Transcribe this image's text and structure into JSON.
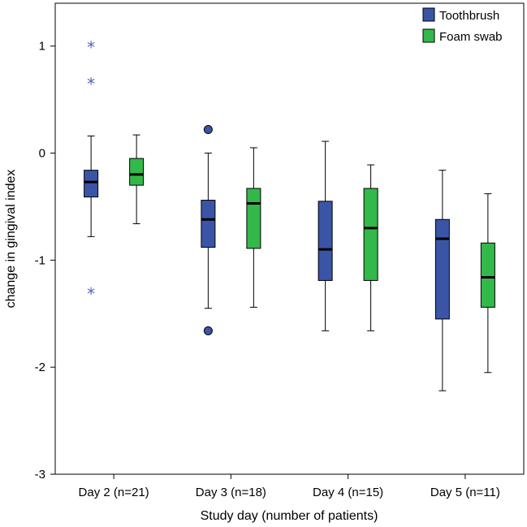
{
  "chart_data": {
    "type": "boxplot",
    "xlabel": "Study day (number of patients)",
    "ylabel": "change in gingival index",
    "ylim": [
      -3,
      1.4
    ],
    "yticks": [
      1,
      0,
      -1,
      -2,
      -3
    ],
    "ytick_labels": [
      "1",
      "0",
      "-1",
      "-2",
      "-3"
    ],
    "categories": [
      "Day 2 (n=21)",
      "Day 3 (n=18)",
      "Day 4 (n=15)",
      "Day 5 (n=11)"
    ],
    "legend_position": "top-right",
    "grid": false,
    "series": [
      {
        "name": "Toothbrush",
        "color": "#3a55a6",
        "boxes": [
          {
            "whisker_low": -0.78,
            "q1": -0.41,
            "median": -0.27,
            "q3": -0.16,
            "whisker_high": 0.16,
            "outliers": [
              {
                "value": 1.0,
                "kind": "extreme"
              },
              {
                "value": 0.66,
                "kind": "extreme"
              },
              {
                "value": -1.3,
                "kind": "extreme"
              }
            ]
          },
          {
            "whisker_low": -1.45,
            "q1": -0.88,
            "median": -0.62,
            "q3": -0.44,
            "whisker_high": 0.0,
            "outliers": [
              {
                "value": 0.22,
                "kind": "mild"
              },
              {
                "value": -1.66,
                "kind": "mild"
              }
            ]
          },
          {
            "whisker_low": -1.66,
            "q1": -1.19,
            "median": -0.9,
            "q3": -0.45,
            "whisker_high": 0.11,
            "outliers": []
          },
          {
            "whisker_low": -2.22,
            "q1": -1.55,
            "median": -0.8,
            "q3": -0.62,
            "whisker_high": -0.16,
            "outliers": []
          }
        ]
      },
      {
        "name": "Foam swab",
        "color": "#33b84a",
        "boxes": [
          {
            "whisker_low": -0.66,
            "q1": -0.3,
            "median": -0.2,
            "q3": -0.05,
            "whisker_high": 0.17,
            "outliers": []
          },
          {
            "whisker_low": -1.44,
            "q1": -0.89,
            "median": -0.47,
            "q3": -0.33,
            "whisker_high": 0.05,
            "outliers": []
          },
          {
            "whisker_low": -1.66,
            "q1": -1.19,
            "median": -0.7,
            "q3": -0.33,
            "whisker_high": -0.11,
            "outliers": []
          },
          {
            "whisker_low": -2.05,
            "q1": -1.44,
            "median": -1.16,
            "q3": -0.84,
            "whisker_high": -0.38,
            "outliers": []
          }
        ]
      }
    ]
  }
}
